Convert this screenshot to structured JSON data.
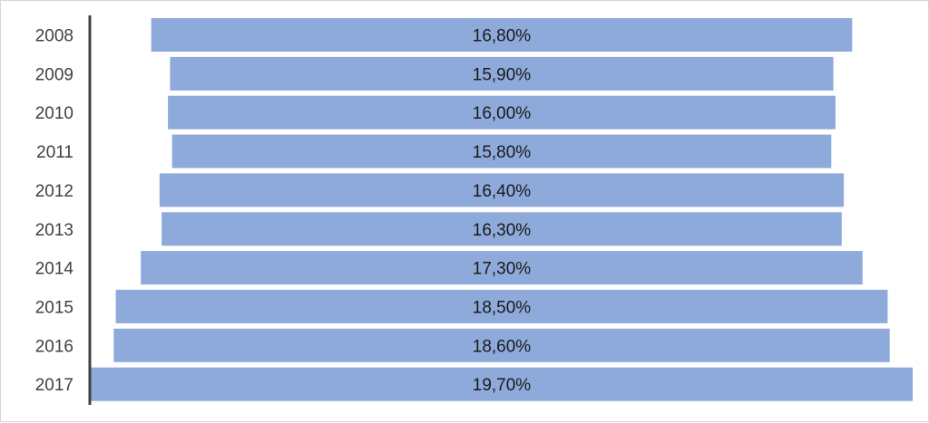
{
  "chart_data": {
    "type": "bar",
    "orientation": "horizontal",
    "layout": "centered-funnel",
    "categories": [
      "2008",
      "2009",
      "2010",
      "2011",
      "2012",
      "2013",
      "2014",
      "2015",
      "2016",
      "2017"
    ],
    "values": [
      16.8,
      15.9,
      16.0,
      15.8,
      16.4,
      16.3,
      17.3,
      18.5,
      18.6,
      19.7
    ],
    "value_labels": [
      "16,80%",
      "15,90%",
      "16,00%",
      "15,80%",
      "16,40%",
      "16,30%",
      "17,30%",
      "18,50%",
      "18,60%",
      "19,70%"
    ],
    "unit": "%",
    "title": "",
    "xlabel": "",
    "ylabel": "",
    "grid": false,
    "legend": "none",
    "colors": {
      "bar": "#8eaadb",
      "axis": "#404040",
      "label": "#404040",
      "value_text": "#1a1a1a"
    }
  }
}
